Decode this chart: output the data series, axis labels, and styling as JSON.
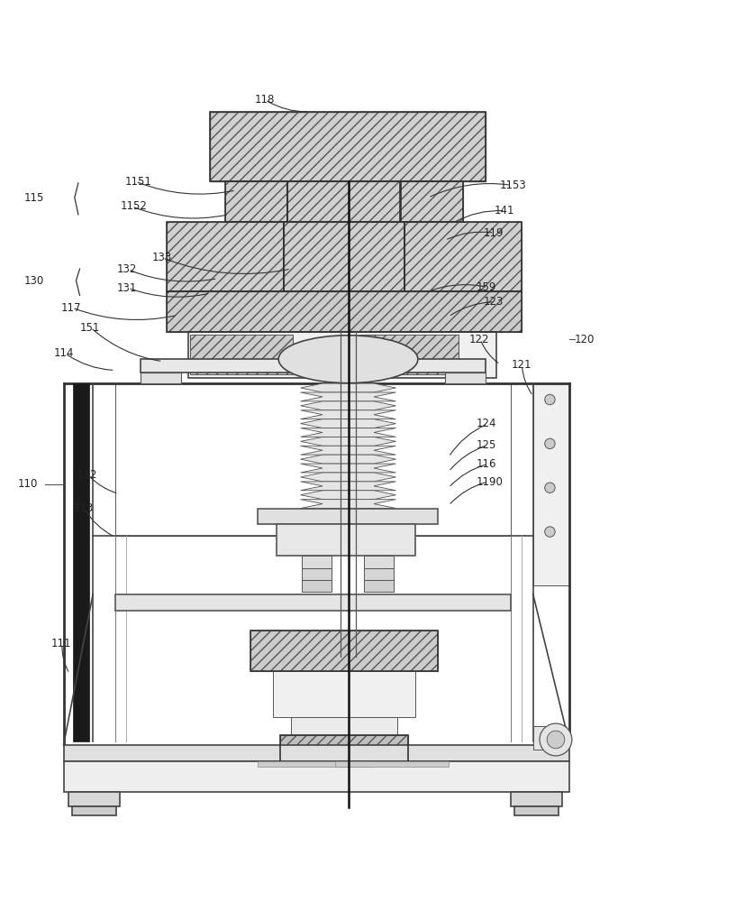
{
  "bg_color": "#ffffff",
  "line_color": "#333333",
  "figsize": [
    8.17,
    10.0
  ],
  "dpi": 100
}
